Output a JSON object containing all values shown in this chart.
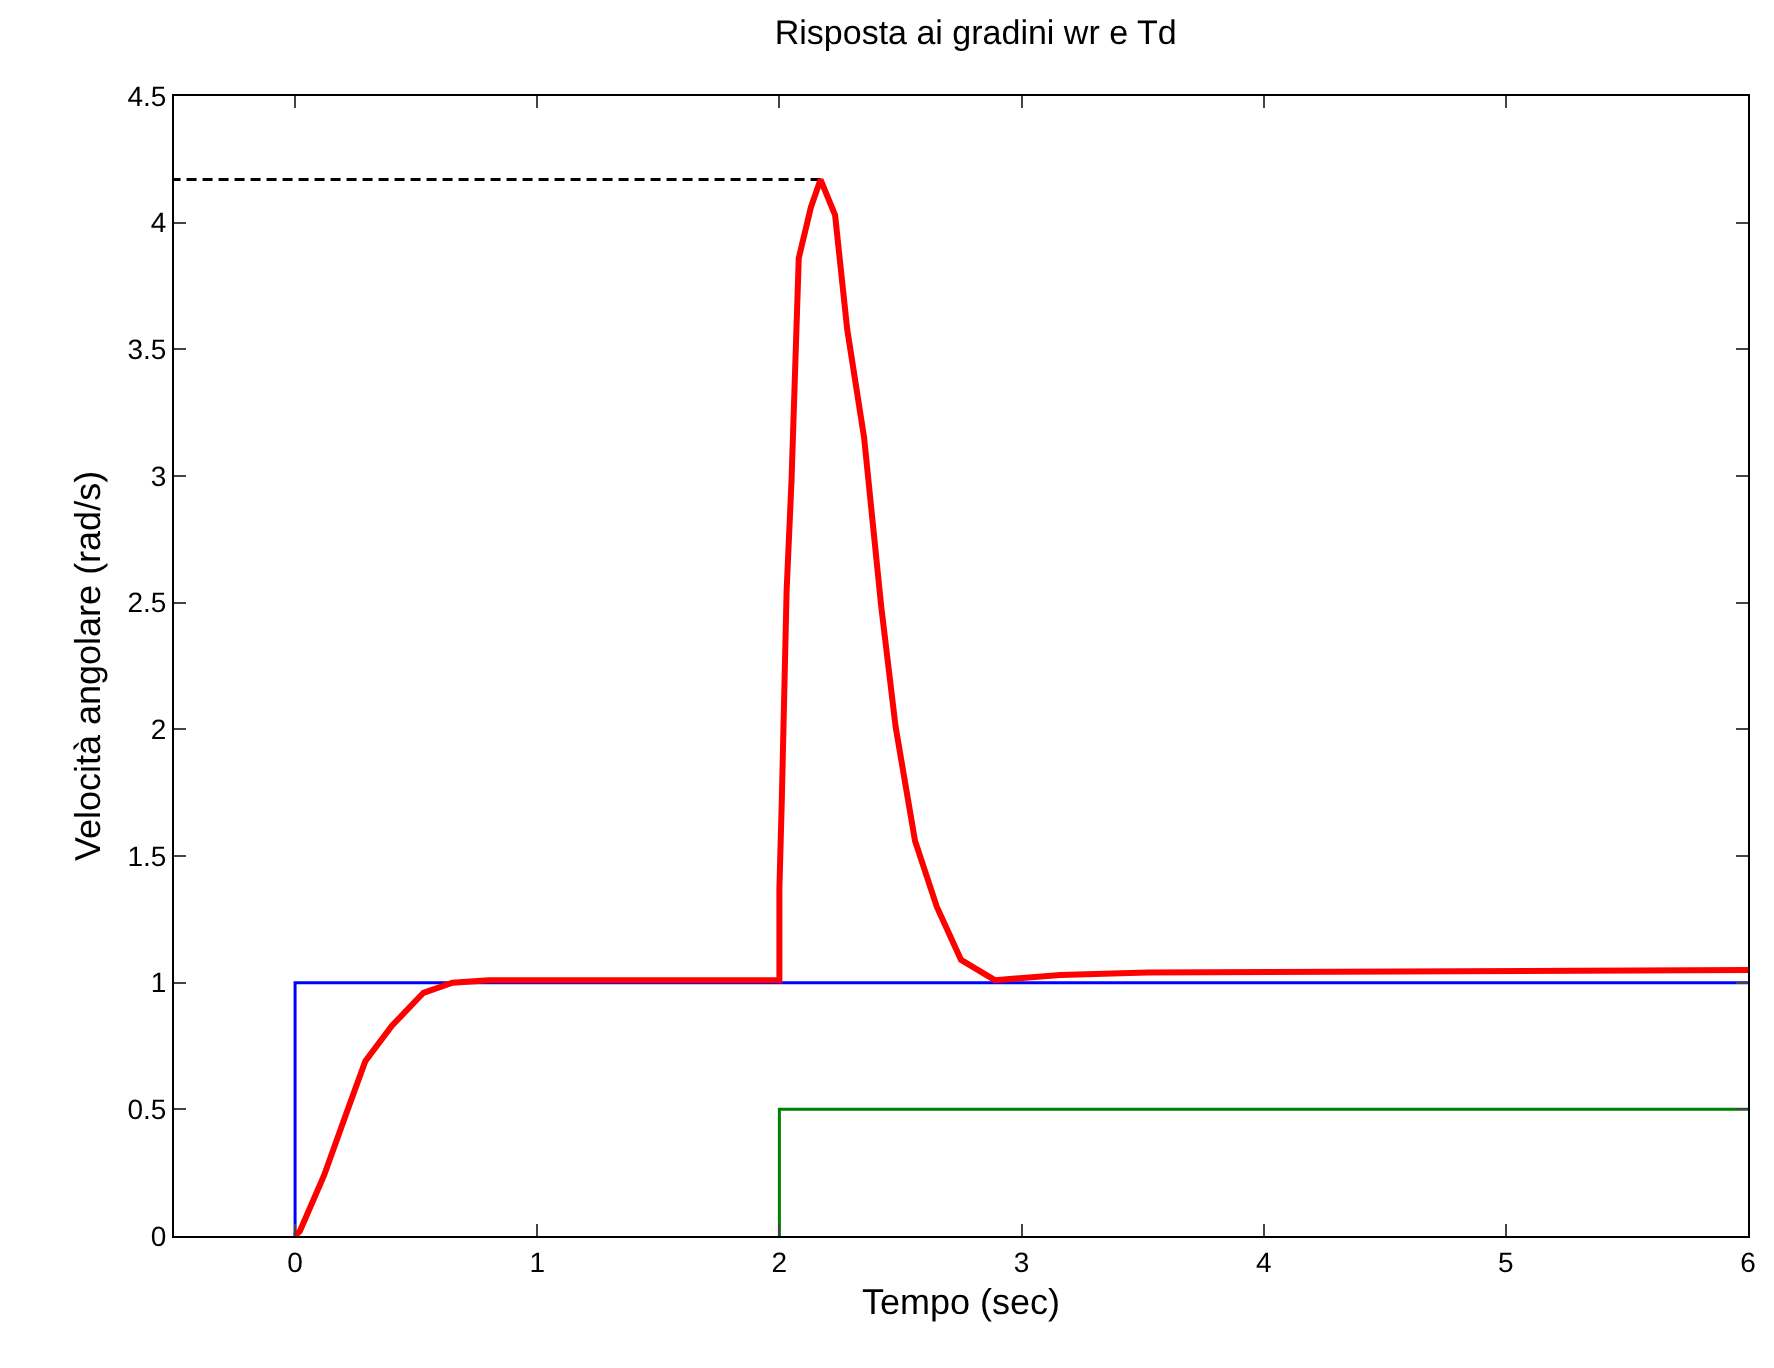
{
  "chart_data": {
    "type": "line",
    "title": "Risposta ai gradini wr e Td",
    "xlabel": "Tempo (sec)",
    "ylabel": "Velocità angolare (rad/s)",
    "xlim": [
      -0.5,
      6
    ],
    "ylim": [
      0,
      4.5
    ],
    "xticks": [
      0,
      1,
      2,
      3,
      4,
      5,
      6
    ],
    "yticks": [
      0,
      0.5,
      1,
      1.5,
      2,
      2.5,
      3,
      3.5,
      4,
      4.5
    ],
    "series": [
      {
        "color": "#0000ff",
        "x": [
          0,
          0,
          6
        ],
        "values": [
          0,
          1,
          1
        ]
      },
      {
        "color": "#008000",
        "x": [
          2,
          2,
          6
        ],
        "values": [
          0,
          0.5,
          0.5
        ]
      },
      {
        "color": "#000000",
        "line_style": "dashed",
        "x": [
          2.17,
          -0.5
        ],
        "values": [
          4.17,
          4.17
        ]
      },
      {
        "color": "#ff0000",
        "x": [
          0,
          0.02,
          0.12,
          0.21,
          0.29,
          0.4,
          0.53,
          0.65,
          0.8,
          1.2,
          2.0,
          2.0,
          2.01,
          2.03,
          2.05,
          2.08,
          2.13,
          2.17,
          2.23,
          2.28,
          2.35,
          2.42,
          2.48,
          2.56,
          2.65,
          2.75,
          2.89,
          3.16,
          3.52,
          6
        ],
        "values": [
          0,
          0.02,
          0.24,
          0.48,
          0.69,
          0.83,
          0.96,
          1.0,
          1.01,
          1.01,
          1.01,
          1.37,
          1.72,
          2.55,
          2.98,
          3.86,
          4.06,
          4.17,
          4.03,
          3.58,
          3.15,
          2.49,
          2.01,
          1.56,
          1.3,
          1.09,
          1.01,
          1.03,
          1.04,
          1.05
        ]
      }
    ]
  }
}
